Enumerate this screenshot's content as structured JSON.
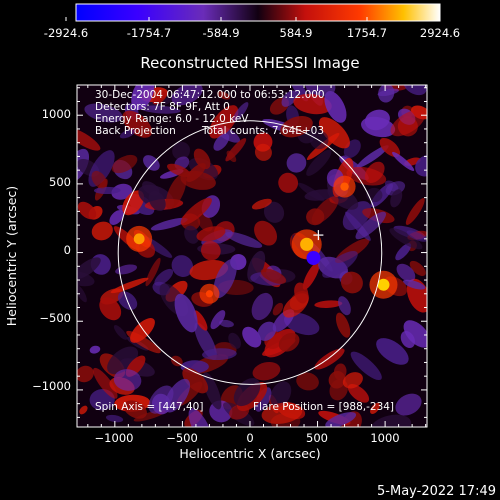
{
  "colorbar": {
    "tick_labels": [
      "-2924.6",
      "-1754.7",
      "-584.9",
      "584.9",
      "1754.7",
      "2924.6"
    ],
    "range": [
      -2924.6,
      2924.6
    ],
    "stops": [
      {
        "v": 0.0,
        "c": "#0000ff"
      },
      {
        "v": 0.17,
        "c": "#3a00ff"
      },
      {
        "v": 0.35,
        "c": "#6a2cb8"
      },
      {
        "v": 0.5,
        "c": "#110011"
      },
      {
        "v": 0.63,
        "c": "#c4100c"
      },
      {
        "v": 0.78,
        "c": "#ff3a00"
      },
      {
        "v": 0.9,
        "c": "#ffc000"
      },
      {
        "v": 1.0,
        "c": "#ffffff"
      }
    ]
  },
  "image": {
    "title": "Reconstructed RHESSI Image",
    "info_lines": [
      "30-Dec-2004 06:47:12.000 to 06:53:12.000",
      "Detectors: 7F 8F 9F, Att 0",
      "Energy Range: 6.0 - 12.0 keV"
    ],
    "method": "Back Projection",
    "total_counts": "Total counts: 7.64E+03",
    "spin_axis": "Spin Axis = [447,40]",
    "flare_position": "Flare Position = [988,-234]",
    "xlabel": "Heliocentric X (arcsec)",
    "ylabel": "Heliocentric Y (arcsec)",
    "x_ticks": [
      -1000,
      -500,
      0,
      500,
      1000
    ],
    "y_ticks": [
      1000,
      500,
      0,
      -500,
      -1000
    ],
    "x_tick_labels": [
      "−1000",
      "−500",
      "0",
      "500",
      "1000"
    ],
    "y_tick_labels": [
      "1000",
      "500",
      "0",
      "−500",
      "−1000"
    ],
    "xlim": [
      -1280,
      1310
    ],
    "ylim": [
      -1270,
      1220
    ],
    "solar_limb_radius_arcsec": 975,
    "limb_color": "#ffffff",
    "spin_axis_marker": [
      447,
      40
    ],
    "flare_marker": [
      988,
      -234
    ]
  },
  "footer": {
    "timestamp": "5-May-2022 17:49"
  }
}
